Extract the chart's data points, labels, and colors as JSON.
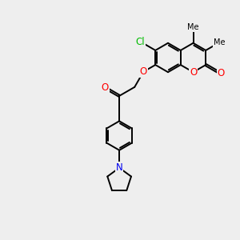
{
  "bg_color": "#eeeeee",
  "bond_color": "#000000",
  "bond_lw": 1.4,
  "dbo": 0.07,
  "atom_colors": {
    "O": "#ff0000",
    "N": "#0000ee",
    "Cl": "#00bb00"
  },
  "fontsize": 8.5,
  "figsize": [
    3.0,
    3.0
  ],
  "dpi": 100,
  "xlim": [
    0,
    10
  ],
  "ylim": [
    0,
    10
  ]
}
